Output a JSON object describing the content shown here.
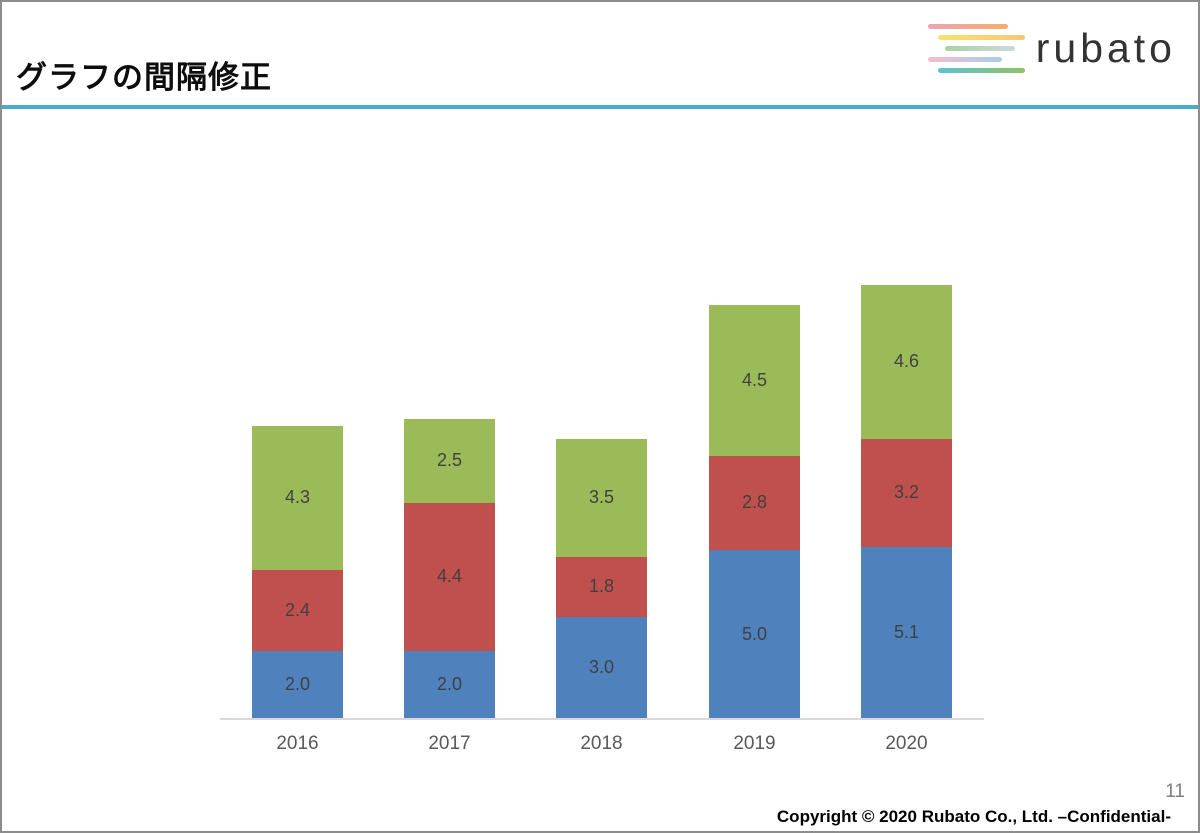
{
  "header": {
    "title": "グラフの間隔修正",
    "logo_text": "rubato",
    "accent_color": "#4BACC6"
  },
  "chart_data": {
    "type": "bar",
    "stacked": true,
    "title": "",
    "xlabel": "",
    "ylabel": "",
    "legend": "none",
    "grid": false,
    "data_labels": true,
    "categories": [
      "2016",
      "2017",
      "2018",
      "2019",
      "2020"
    ],
    "series": [
      {
        "name": "blue",
        "color": "#4F81BD",
        "values": [
          2.0,
          2.0,
          3.0,
          5.0,
          5.1
        ]
      },
      {
        "name": "red",
        "color": "#C0504D",
        "values": [
          2.4,
          4.4,
          1.8,
          2.8,
          3.2
        ]
      },
      {
        "name": "green",
        "color": "#9BBB59",
        "values": [
          4.3,
          2.5,
          3.5,
          4.5,
          4.6
        ]
      }
    ],
    "totals": [
      8.7,
      8.9,
      8.3,
      12.3,
      12.9
    ],
    "label_color": "#404040",
    "tick_label_color": "#595959",
    "axis_color": "#D9D9D9"
  },
  "footer": {
    "page_number": "11",
    "copyright": "Copyright © 2020 Rubato Co., Ltd. –Confidential-"
  }
}
